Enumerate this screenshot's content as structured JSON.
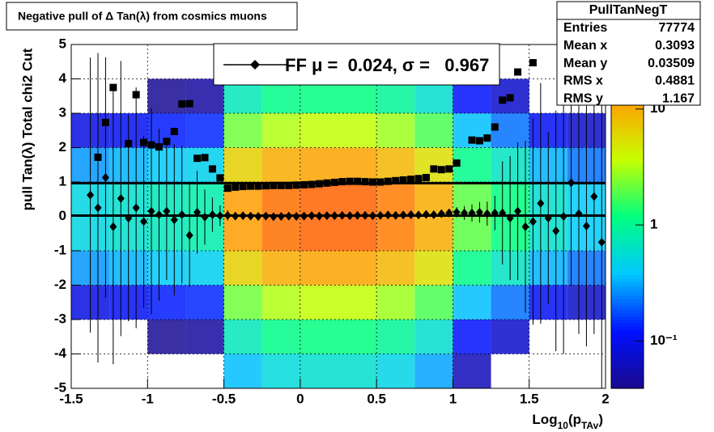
{
  "chart_data": {
    "type": "profile2d",
    "title": "Negative pull of Δ Tan(λ) from cosmics muons",
    "ylabel": "pull Tan(λ)  Total chi2 Cut",
    "xlabel": [
      {
        "t": "Log"
      },
      {
        "t": "10",
        "sub": true
      },
      {
        "t": "(p"
      },
      {
        "t": "TAv",
        "sub": true
      },
      {
        "t": ")"
      }
    ],
    "xlim": [
      -1.5,
      2
    ],
    "xticks": [
      -1.5,
      -1,
      -0.5,
      0,
      0.5,
      1,
      1.5,
      2
    ],
    "ylim": [
      -5,
      5
    ],
    "yticks": [
      -5,
      -4,
      -3,
      -2,
      -1,
      0,
      1,
      2,
      3,
      4,
      5
    ],
    "grid": true,
    "zlim": [
      0.039,
      36
    ],
    "zlog": true,
    "zticks": [
      {
        "value": 0.1,
        "label": "10⁻¹"
      },
      {
        "value": 1,
        "label": "1"
      },
      {
        "value": 10,
        "label": "10"
      }
    ],
    "palette": [
      "#1a0a8c",
      "#0010ff",
      "#00c8ff",
      "#00ff80",
      "#c8ff00",
      "#ffa000",
      "#ff2000"
    ],
    "heatmap": {
      "xbins": [
        -1.5,
        -1.25,
        -1,
        -0.75,
        -0.5,
        -0.25,
        0,
        0.25,
        0.5,
        0.75,
        1,
        1.25,
        1.5,
        1.75,
        2
      ],
      "ybins": [
        -5,
        -4,
        -3,
        -2,
        -1,
        0,
        1,
        2,
        3,
        4,
        5
      ],
      "z": [
        [
          0.015,
          0.03,
          0.09,
          0.28,
          0.5,
          0.5,
          0.28,
          0.09,
          0.03,
          0.015
        ],
        [
          0.018,
          0.036,
          0.11,
          0.33,
          0.6,
          0.6,
          0.33,
          0.11,
          0.036,
          0.018
        ],
        [
          0.021,
          0.042,
          0.13,
          0.39,
          0.7,
          0.7,
          0.39,
          0.13,
          0.042,
          0.021
        ],
        [
          0.024,
          0.048,
          0.14,
          0.44,
          0.8,
          0.8,
          0.44,
          0.14,
          0.048,
          0.024
        ],
        [
          0.36,
          0.72,
          2.2,
          6.6,
          12,
          12,
          6.6,
          2.2,
          0.72,
          0.36
        ],
        [
          0.54,
          1.1,
          3.2,
          9.9,
          18,
          18,
          9.9,
          3.2,
          1.1,
          0.54
        ],
        [
          0.6,
          1.2,
          3.6,
          11,
          20,
          20,
          11,
          3.6,
          1.2,
          0.6
        ],
        [
          0.6,
          1.2,
          3.6,
          11,
          20,
          20,
          11,
          3.6,
          1.2,
          0.6
        ],
        [
          0.48,
          0.96,
          2.9,
          8.8,
          16,
          16,
          8.8,
          2.9,
          0.96,
          0.48
        ],
        [
          0.3,
          0.6,
          1.8,
          5.5,
          10,
          10,
          5.5,
          1.8,
          0.6,
          0.3
        ],
        [
          0.06,
          0.12,
          0.36,
          1.1,
          2,
          2,
          1.1,
          0.36,
          0.12,
          0.06
        ],
        [
          0.036,
          0.072,
          0.22,
          0.66,
          1.2,
          1.2,
          0.66,
          0.22,
          0.072,
          0.036
        ],
        [
          0.018,
          0.036,
          0.11,
          0.33,
          0.6,
          0.6,
          0.33,
          0.11,
          0.036,
          0.018
        ],
        [
          0.012,
          0.024,
          0.072,
          0.22,
          0.4,
          0.4,
          0.22,
          0.072,
          0.024,
          0.012
        ]
      ]
    },
    "x": [
      -1.375,
      -1.325,
      -1.275,
      -1.225,
      -1.175,
      -1.125,
      -1.075,
      -1.025,
      -0.975,
      -0.925,
      -0.875,
      -0.825,
      -0.775,
      -0.725,
      -0.675,
      -0.625,
      -0.575,
      -0.525,
      -0.475,
      -0.425,
      -0.375,
      -0.325,
      -0.275,
      -0.225,
      -0.175,
      -0.125,
      -0.075,
      -0.025,
      0.025,
      0.075,
      0.125,
      0.175,
      0.225,
      0.275,
      0.325,
      0.375,
      0.425,
      0.475,
      0.525,
      0.575,
      0.625,
      0.675,
      0.725,
      0.775,
      0.825,
      0.875,
      0.925,
      0.975,
      1.025,
      1.075,
      1.125,
      1.175,
      1.225,
      1.275,
      1.325,
      1.375,
      1.425,
      1.475,
      1.525,
      1.575,
      1.625,
      1.675,
      1.725,
      1.775,
      1.825,
      1.875,
      1.925,
      1.975
    ],
    "series": [
      {
        "marker": "diamond",
        "color": "#000000",
        "values": [
          0.62,
          0.25,
          1.13,
          -0.3,
          0.52,
          -0.05,
          0.25,
          -0.15,
          0.15,
          0.05,
          0.15,
          -0.1,
          0.05,
          -0.55,
          0.12,
          -0.02,
          0.05,
          0.02,
          0.03,
          0.01,
          0.02,
          0.01,
          0.0,
          0.01,
          -0.01,
          0.0,
          0.01,
          0.0,
          0.01,
          0.02,
          0.01,
          0.02,
          0.02,
          0.03,
          0.02,
          0.03,
          0.03,
          0.02,
          0.03,
          0.04,
          0.03,
          0.04,
          0.05,
          0.04,
          0.06,
          0.05,
          0.08,
          0.1,
          0.12,
          0.1,
          0.1,
          0.12,
          0.08,
          0.1,
          0.1,
          -0.05,
          0.15,
          -0.3,
          -0.15,
          0.38,
          -0.05,
          -0.42,
          0.0,
          0.98,
          0.08,
          -0.28,
          0.58,
          -0.75
        ],
        "errors": [
          4,
          4.5,
          3.5,
          4,
          4,
          3,
          3.5,
          2.5,
          3,
          2.5,
          2,
          2.2,
          2,
          1.5,
          1.2,
          0.8,
          0.5,
          0.3,
          0.15,
          0.05,
          0.05,
          0.05,
          0.05,
          0.05,
          0.05,
          0.05,
          0.05,
          0.05,
          0.05,
          0.05,
          0.05,
          0.05,
          0.05,
          0.05,
          0.05,
          0.05,
          0.05,
          0.05,
          0.05,
          0.05,
          0.05,
          0.05,
          0.05,
          0.05,
          0.05,
          0.1,
          0.1,
          0.12,
          0.15,
          0.2,
          0.25,
          0.3,
          0.35,
          0.5,
          1.5,
          1.8,
          2,
          2.5,
          3,
          3.5,
          2.5,
          3.5,
          4,
          3,
          3.5,
          3.5,
          4,
          4.5
        ]
      },
      {
        "marker": "square",
        "color": "#000000",
        "values": [
          null,
          1.72,
          2.73,
          3.75,
          null,
          2.12,
          3.54,
          2.15,
          2.08,
          2.02,
          2.18,
          2.47,
          3.27,
          3.28,
          1.69,
          1.71,
          1.38,
          1.12,
          0.82,
          0.85,
          0.87,
          0.88,
          0.88,
          0.89,
          0.9,
          0.9,
          0.9,
          0.91,
          0.92,
          0.93,
          0.95,
          0.97,
          0.99,
          1.01,
          1.02,
          1.02,
          1.01,
          1.0,
          1.0,
          1.02,
          1.04,
          1.06,
          1.08,
          1.1,
          1.13,
          1.38,
          1.36,
          1.38,
          1.55,
          null,
          2.22,
          2.2,
          2.28,
          2.6,
          3.38,
          3.45,
          4.2,
          null,
          4.47,
          null,
          null,
          null,
          null,
          null,
          null,
          null,
          null,
          null
        ]
      }
    ],
    "fit_lines": [
      0.024,
      0.967
    ],
    "legend": "FF μ =  0.024, σ =   0.967",
    "stats": {
      "title": "PullTanNegT",
      "rows": [
        {
          "name": "Entries",
          "value": 77774
        },
        {
          "name": "Mean x",
          "value": 0.3093
        },
        {
          "name": "Mean y",
          "value": 0.03509
        },
        {
          "name": "RMS x",
          "value": 0.4881
        },
        {
          "name": "RMS y",
          "value": 1.167
        }
      ]
    }
  }
}
